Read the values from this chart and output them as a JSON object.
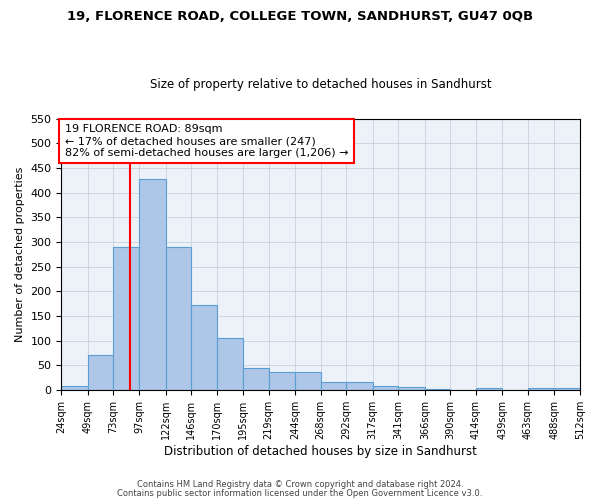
{
  "title": "19, FLORENCE ROAD, COLLEGE TOWN, SANDHURST, GU47 0QB",
  "subtitle": "Size of property relative to detached houses in Sandhurst",
  "xlabel": "Distribution of detached houses by size in Sandhurst",
  "ylabel": "Number of detached properties",
  "bar_color": "#aec6e8",
  "bar_edge_color": "#5a9fd4",
  "grid_color": "#c8d0e0",
  "bg_color": "#edf1f8",
  "vline_x": 89,
  "vline_color": "red",
  "annotation_text": "19 FLORENCE ROAD: 89sqm\n← 17% of detached houses are smaller (247)\n82% of semi-detached houses are larger (1,206) →",
  "annotation_box_color": "red",
  "footer1": "Contains HM Land Registry data © Crown copyright and database right 2024.",
  "footer2": "Contains public sector information licensed under the Open Government Licence v3.0.",
  "bin_edges": [
    24,
    49,
    73,
    97,
    122,
    146,
    170,
    195,
    219,
    244,
    268,
    292,
    317,
    341,
    366,
    390,
    414,
    439,
    463,
    488,
    512
  ],
  "bin_counts": [
    8,
    70,
    290,
    427,
    290,
    173,
    105,
    45,
    37,
    37,
    16,
    16,
    8,
    5,
    2,
    0,
    4,
    0,
    3,
    3
  ],
  "ylim": [
    0,
    550
  ],
  "yticks": [
    0,
    50,
    100,
    150,
    200,
    250,
    300,
    350,
    400,
    450,
    500,
    550
  ]
}
